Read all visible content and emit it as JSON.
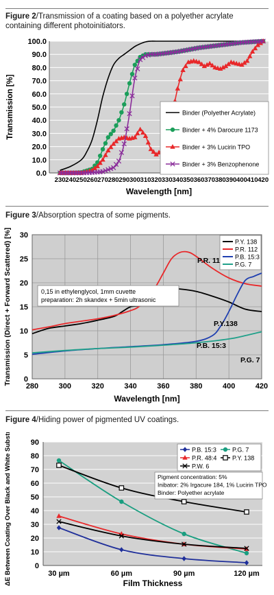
{
  "captions": [
    {
      "label": "Figure 2",
      "text": "Transmission of a coating based on a polyether acrylate containing different photoinitiators."
    },
    {
      "label": "Figure 3",
      "text": "Absorption spectra of some pigments."
    },
    {
      "label": "Figure 4",
      "text": "Hiding power of pigmented UV coatings."
    }
  ],
  "chart_data": [
    {
      "type": "line",
      "title": "",
      "xlabel": "Wavelength [nm]",
      "ylabel": "Transmission [%]",
      "xlim": [
        220,
        425
      ],
      "ylim": [
        0,
        100
      ],
      "xticks": [
        "230",
        "240",
        "250",
        "260",
        "270",
        "280",
        "290",
        "300",
        "310",
        "320",
        "330",
        "340",
        "350",
        "360",
        "370",
        "380",
        "390",
        "400",
        "410",
        "420"
      ],
      "yticks": [
        "0.0",
        "10.0",
        "20.0",
        "30.0",
        "40.0",
        "50.0",
        "60.0",
        "70.0",
        "80.0",
        "90.0",
        "100.0"
      ],
      "grid": true,
      "legend_position": "right",
      "series": [
        {
          "name": "Binder (Polyether Acrylate)",
          "color": "#000000",
          "marker": "none",
          "x": [
            230,
            240,
            250,
            255,
            260,
            265,
            270,
            275,
            280,
            285,
            290,
            295,
            300,
            305,
            310,
            315,
            320,
            340,
            360,
            380,
            400,
            420
          ],
          "y": [
            2,
            5,
            10,
            16,
            25,
            40,
            58,
            72,
            82,
            87,
            90,
            93,
            96,
            98,
            99.5,
            100,
            100,
            100,
            100,
            100,
            100,
            100
          ]
        },
        {
          "name": "Binder + 4% Darocure 1173",
          "color": "#1b9e5a",
          "marker": "dot",
          "x": [
            230,
            240,
            250,
            260,
            265,
            270,
            275,
            280,
            285,
            290,
            295,
            300,
            305,
            310,
            315,
            320,
            330,
            340,
            360,
            380,
            400,
            420
          ],
          "y": [
            0,
            0,
            0.5,
            3,
            8,
            18,
            27,
            32,
            40,
            52,
            68,
            82,
            88,
            90,
            90,
            90,
            91,
            92,
            95,
            97,
            99,
            100
          ]
        },
        {
          "name": "Binder + 3% Lucirin TPO",
          "color": "#e8282a",
          "marker": "triangle",
          "x": [
            230,
            240,
            250,
            260,
            265,
            270,
            275,
            280,
            285,
            290,
            295,
            300,
            305,
            310,
            315,
            320,
            325,
            330,
            335,
            340,
            345,
            350,
            355,
            360,
            365,
            370,
            375,
            380,
            385,
            390,
            395,
            400,
            405,
            410,
            415,
            420
          ],
          "y": [
            0,
            0,
            0,
            2,
            5,
            10,
            17,
            22,
            26,
            27,
            26,
            27,
            33,
            28,
            18,
            14,
            17,
            28,
            45,
            64,
            78,
            84,
            85,
            84,
            81,
            83,
            80,
            79,
            81,
            84,
            83,
            82,
            85,
            92,
            97,
            100
          ]
        },
        {
          "name": "Binder + 3% Benzophenone",
          "color": "#8a2d9a",
          "marker": "x",
          "x": [
            230,
            240,
            250,
            260,
            270,
            280,
            285,
            290,
            295,
            300,
            305,
            310,
            315,
            320,
            330,
            340,
            360,
            380,
            400,
            420
          ],
          "y": [
            0,
            0,
            0,
            0.3,
            1,
            4,
            9,
            22,
            45,
            72,
            86,
            89,
            90,
            90,
            91,
            92,
            95,
            97,
            99,
            100
          ]
        }
      ]
    },
    {
      "type": "line",
      "title": "",
      "xlabel": "Wavelength [nm]",
      "ylabel": "Transmission (Direct + Forward Scattered) [%]",
      "xlim": [
        280,
        420
      ],
      "ylim": [
        0,
        30
      ],
      "xticks": [
        "280",
        "300",
        "320",
        "340",
        "360",
        "380",
        "400",
        "420"
      ],
      "yticks": [
        "0",
        "5",
        "10",
        "15",
        "20",
        "25",
        "30"
      ],
      "grid": true,
      "legend_position": "top-right",
      "annotation_box": [
        "0,15 in ethylenglycol, 1mm cuvette",
        "preparation: 2h skandex + 5min ultrasonic"
      ],
      "series": [
        {
          "name": "P.Y. 138",
          "label": "P.Y.138",
          "color": "#000000",
          "x": [
            280,
            290,
            300,
            310,
            320,
            330,
            335,
            340,
            345,
            350,
            355,
            360,
            365,
            370,
            380,
            390,
            400,
            410,
            420
          ],
          "y": [
            9.4,
            10.5,
            11,
            11.5,
            12.2,
            13,
            14,
            15,
            15.2,
            15.5,
            17,
            18.3,
            18.7,
            18.7,
            18.2,
            17.2,
            16,
            14.5,
            14
          ]
        },
        {
          "name": "P.R. 112",
          "label": "P.R. 112",
          "color": "#e8282a",
          "x": [
            280,
            290,
            300,
            310,
            320,
            330,
            340,
            345,
            350,
            355,
            360,
            365,
            370,
            375,
            380,
            390,
            400,
            410,
            420
          ],
          "y": [
            10.2,
            10.8,
            11.5,
            12,
            12.5,
            13.2,
            14.2,
            15,
            16.8,
            19,
            22,
            25,
            26.3,
            26.4,
            25.5,
            23,
            21,
            19.8,
            19.3
          ]
        },
        {
          "name": "P.B. 15:3",
          "label": "P.B. 15:3",
          "color": "#1f3fb0",
          "x": [
            280,
            300,
            320,
            340,
            360,
            380,
            390,
            395,
            400,
            405,
            410,
            415,
            420
          ],
          "y": [
            5.1,
            5.8,
            6.3,
            6.7,
            7.1,
            7.8,
            9,
            11,
            14,
            17.5,
            20.5,
            21.3,
            22
          ]
        },
        {
          "name": "P.G. 7",
          "label": "P.G. 7",
          "color": "#20a08a",
          "x": [
            280,
            300,
            320,
            340,
            360,
            380,
            400,
            410,
            420
          ],
          "y": [
            5.4,
            5.9,
            6.3,
            6.6,
            7,
            7.5,
            8.3,
            9,
            9.8
          ]
        }
      ]
    },
    {
      "type": "line",
      "title": "",
      "xlabel": "Film Thickness",
      "ylabel": "ΔE Between Coating Over Black and White Substrate",
      "categories": [
        "30 µm",
        "60 µm",
        "90 µm",
        "120 µm"
      ],
      "ylim": [
        0,
        90
      ],
      "yticks": [
        "0",
        "10",
        "20",
        "30",
        "40",
        "50",
        "60",
        "70",
        "80",
        "90"
      ],
      "grid": true,
      "legend_position": "top-right",
      "annotation_box": [
        "Pigment concentration: 5%",
        "Inibator: 2% Irgacure 184, 1% Lucirin TPO",
        "Binder: Polyether acrylate"
      ],
      "series": [
        {
          "name": "P.B. 15:3",
          "color": "#1f2f9a",
          "marker": "diamond",
          "values": [
            27.5,
            11.5,
            5,
            2
          ]
        },
        {
          "name": "P.G. 7",
          "color": "#1a9e80",
          "marker": "dot",
          "values": [
            76.5,
            46.5,
            23,
            9
          ]
        },
        {
          "name": "P.R. 48:4",
          "color": "#e8282a",
          "marker": "triangle",
          "values": [
            36,
            23,
            15.5,
            12
          ]
        },
        {
          "name": "P.Y. 138",
          "color": "#000000",
          "marker": "square",
          "values": [
            73,
            56.5,
            46.5,
            39
          ]
        },
        {
          "name": "P.W. 6",
          "color": "#000000",
          "marker": "x",
          "values": [
            32,
            21.5,
            15.5,
            12.5
          ]
        }
      ]
    }
  ]
}
